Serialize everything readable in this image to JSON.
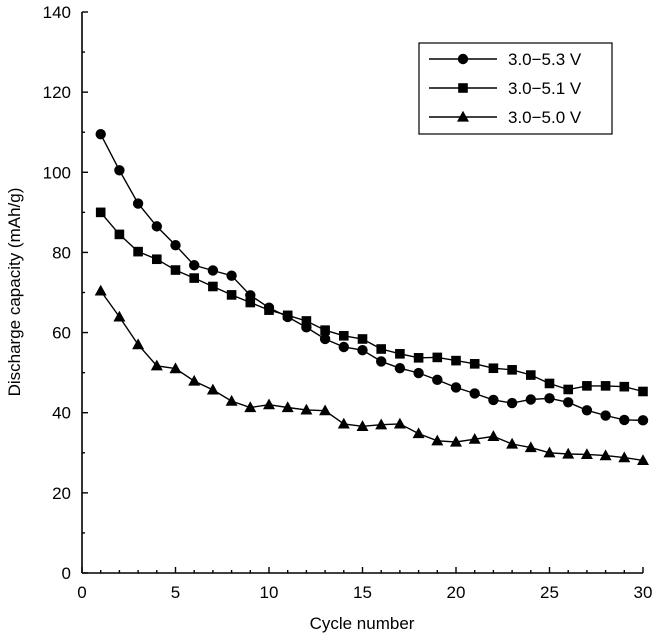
{
  "chart_data": {
    "type": "line",
    "xlabel": "Cycle number",
    "ylabel": "Discharge capacity (mAh/g)",
    "xlim": [
      0,
      30
    ],
    "ylim": [
      0,
      140
    ],
    "xticks": [
      "0",
      "5",
      "10",
      "15",
      "20",
      "25",
      "30"
    ],
    "yticks": [
      "0",
      "20",
      "40",
      "60",
      "80",
      "100",
      "120",
      "140"
    ],
    "grid": false,
    "legend_position": "top-right",
    "x": [
      1,
      2,
      3,
      4,
      5,
      6,
      7,
      8,
      9,
      10,
      11,
      12,
      13,
      14,
      15,
      16,
      17,
      18,
      19,
      20,
      21,
      22,
      23,
      24,
      25,
      26,
      27,
      28,
      29,
      30
    ],
    "series": [
      {
        "name": "3.0−5.3 V",
        "marker": "circle",
        "values": [
          109.5,
          100.5,
          92.2,
          86.5,
          81.8,
          76.8,
          75.5,
          74.2,
          69.3,
          66.2,
          63.9,
          61.3,
          58.4,
          56.4,
          55.6,
          52.8,
          51.1,
          49.9,
          48.2,
          46.3,
          44.8,
          43.2,
          42.4,
          43.3,
          43.6,
          42.6,
          40.6,
          39.3,
          38.2,
          38.1
        ]
      },
      {
        "name": "3.0−5.1 V",
        "marker": "square",
        "values": [
          90.0,
          84.5,
          80.2,
          78.3,
          75.6,
          73.6,
          71.5,
          69.4,
          67.5,
          65.6,
          64.3,
          62.9,
          60.6,
          59.2,
          58.4,
          55.9,
          54.7,
          53.7,
          53.8,
          53.0,
          52.2,
          51.1,
          50.7,
          49.4,
          47.3,
          45.8,
          46.7,
          46.7,
          46.5,
          45.3
        ]
      },
      {
        "name": "3.0−5.0 V",
        "marker": "triangle",
        "values": [
          70.4,
          63.9,
          57.0,
          51.7,
          51.0,
          47.9,
          45.7,
          42.9,
          41.3,
          42.0,
          41.3,
          40.7,
          40.5,
          37.2,
          36.6,
          37.0,
          37.2,
          34.8,
          33.0,
          32.7,
          33.4,
          34.1,
          32.2,
          31.3,
          30.0,
          29.7,
          29.6,
          29.3,
          28.8,
          28.1
        ]
      }
    ]
  }
}
